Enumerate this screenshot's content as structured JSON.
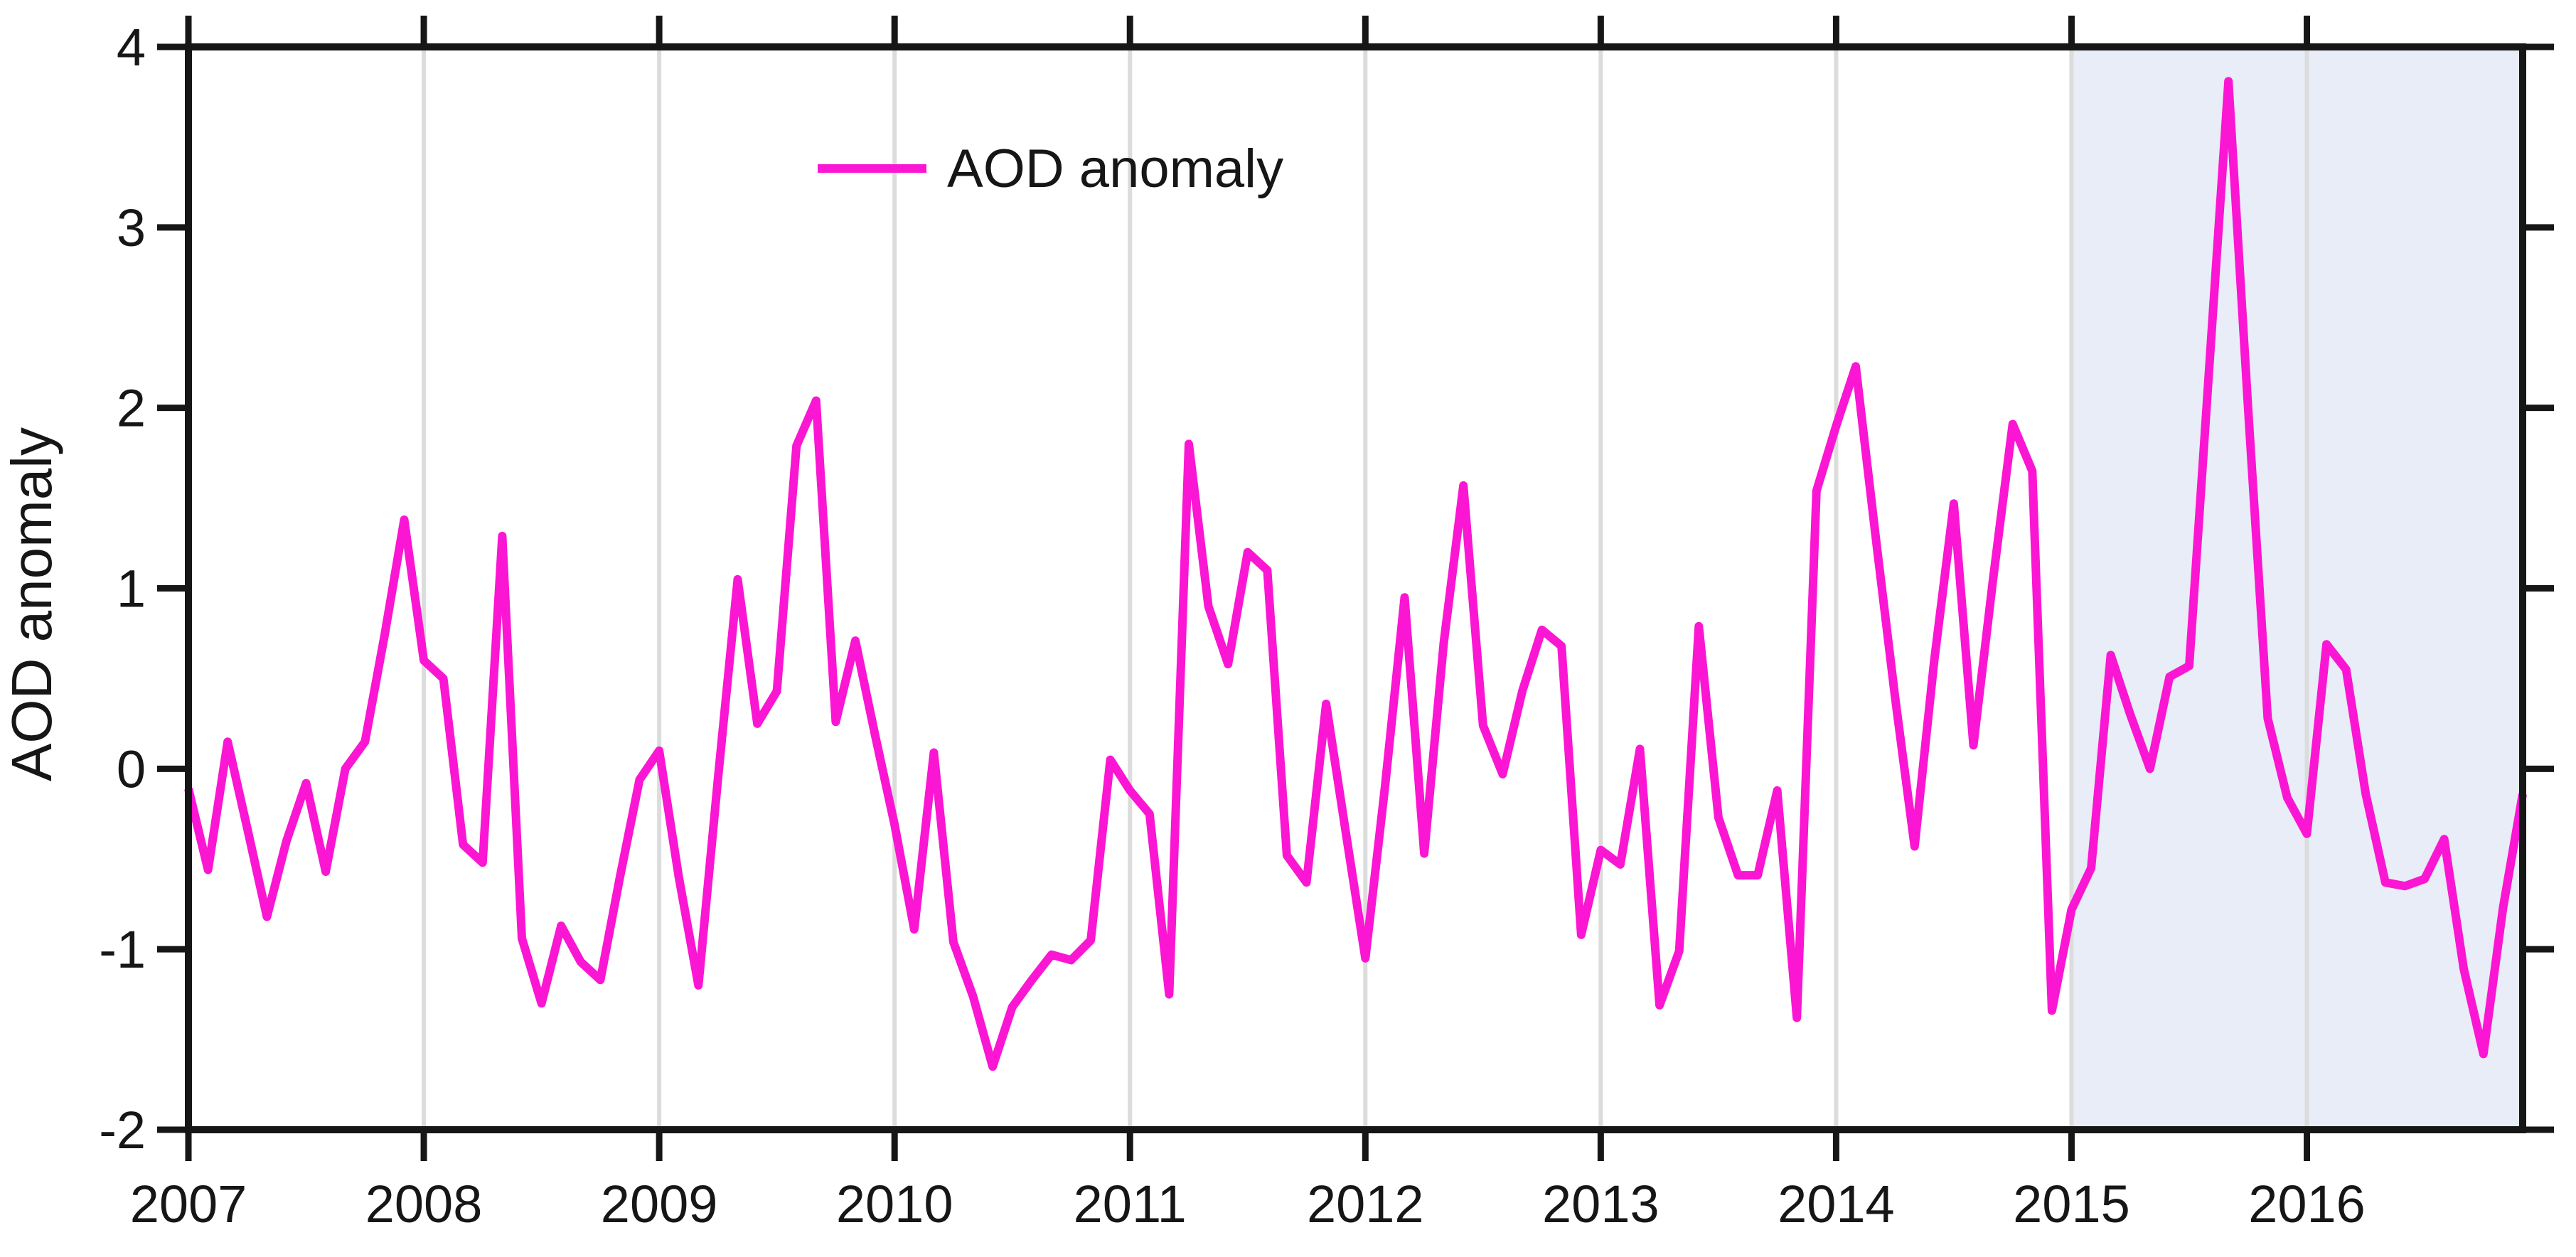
{
  "chart_data": {
    "type": "line",
    "title": "",
    "xlabel": "",
    "ylabel": "AOD anomaly",
    "ylim": [
      -2,
      4
    ],
    "yticks": [
      4,
      3,
      2,
      1,
      0,
      -1,
      -2
    ],
    "xtick_years": [
      "2007",
      "2008",
      "2009",
      "2010",
      "2011",
      "2012",
      "2013",
      "2014",
      "2015",
      "2016"
    ],
    "x_start": "2007-01",
    "x_end": "2016-12",
    "x_interval": "monthly",
    "n_points": 120,
    "grid": "vertical-year-gridlines",
    "legend": {
      "position": "top-center",
      "entries": [
        "AOD anomaly"
      ]
    },
    "highlight_region": {
      "start": "2015-01",
      "end": "2016-12",
      "fill": "#e8edf7"
    },
    "series": [
      {
        "name": "AOD anomaly",
        "color": "#fa16d2",
        "values": [
          -0.11,
          -0.56,
          0.15,
          -0.33,
          -0.82,
          -0.4,
          -0.08,
          -0.57,
          0.0,
          0.15,
          0.74,
          1.38,
          0.6,
          0.5,
          -0.42,
          -0.52,
          1.29,
          -0.94,
          -1.3,
          -0.87,
          -1.07,
          -1.17,
          -0.6,
          -0.06,
          0.1,
          -0.6,
          -1.2,
          -0.05,
          1.05,
          0.25,
          0.43,
          1.79,
          2.04,
          0.26,
          0.71,
          0.19,
          -0.31,
          -0.89,
          0.09,
          -0.96,
          -1.26,
          -1.65,
          -1.32,
          -1.17,
          -1.03,
          -1.06,
          -0.95,
          0.05,
          -0.12,
          -0.25,
          -1.25,
          1.8,
          0.9,
          0.58,
          1.2,
          1.1,
          -0.48,
          -0.63,
          0.36,
          -0.35,
          -1.05,
          -0.1,
          0.95,
          -0.47,
          0.7,
          1.57,
          0.24,
          -0.03,
          0.43,
          0.77,
          0.68,
          -0.92,
          -0.45,
          -0.53,
          0.11,
          -1.31,
          -1.01,
          0.79,
          -0.27,
          -0.59,
          -0.59,
          -0.12,
          -1.38,
          1.54,
          1.9,
          2.23,
          1.3,
          0.4,
          -0.43,
          0.6,
          1.47,
          0.13,
          1.05,
          1.91,
          1.65,
          -1.34,
          -0.78,
          -0.55,
          0.63,
          0.3,
          0.0,
          0.51,
          0.57,
          2.19,
          3.81,
          2.0,
          0.28,
          -0.16,
          -0.36,
          0.69,
          0.55,
          -0.14,
          -0.63,
          -0.65,
          -0.61,
          -0.39,
          -1.11,
          -1.58,
          -0.77,
          -0.14
        ]
      }
    ],
    "colors": {
      "axis": "#161616",
      "gridline": "#dcdcdc",
      "background": "#ffffff"
    }
  }
}
